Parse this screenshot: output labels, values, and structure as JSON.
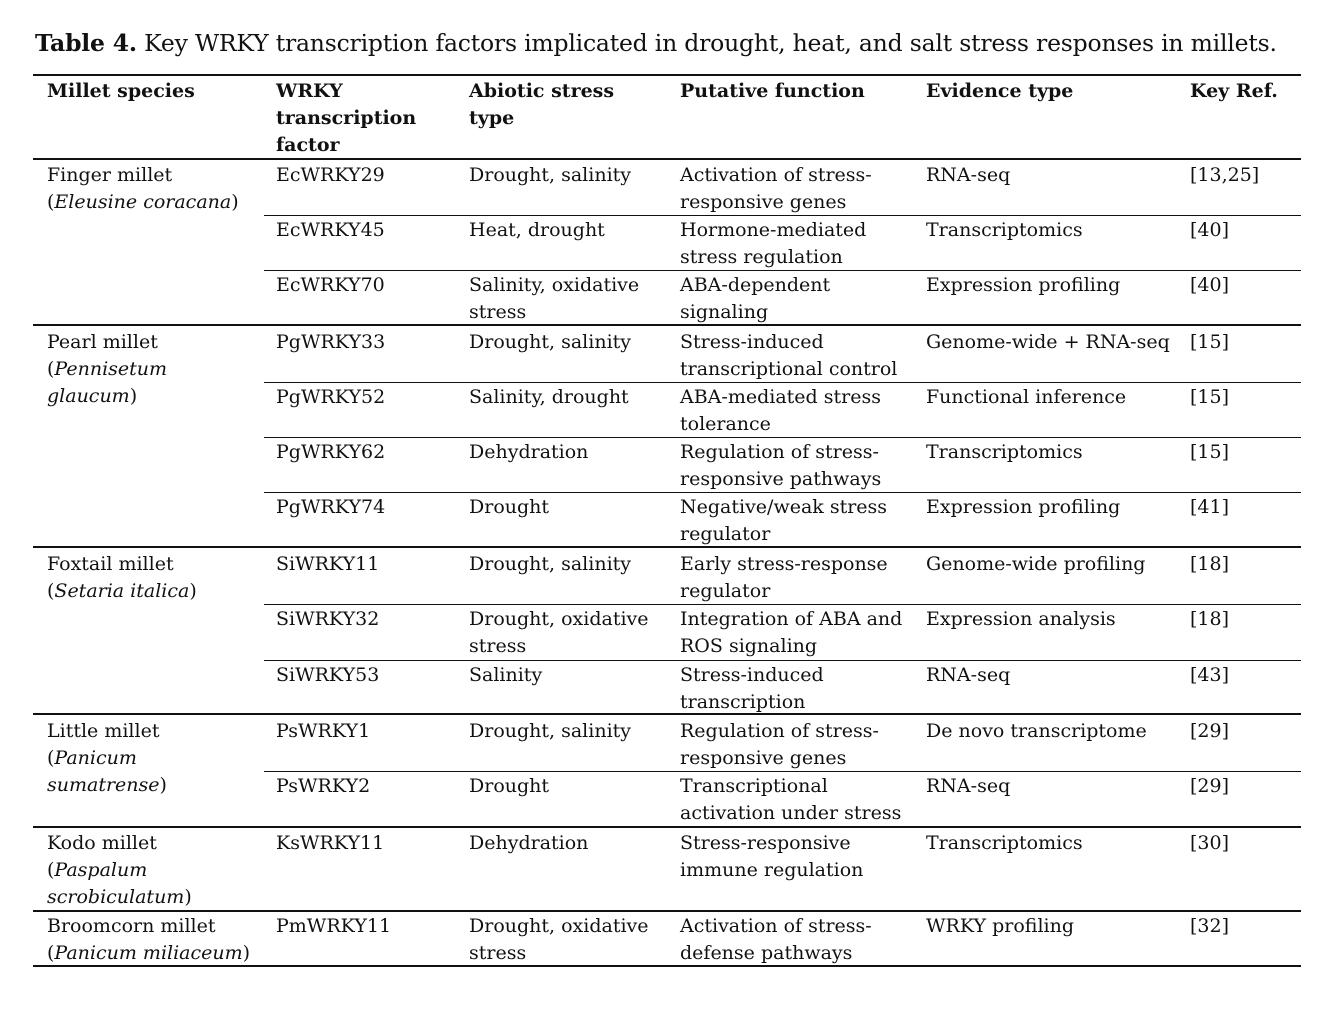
{
  "caption": {
    "label": "Table 4.",
    "text": " Key WRKY transcription factors implicated in drought, heat, and salt stress responses in millets."
  },
  "headers": {
    "species": "Millet species",
    "factor": [
      "WRKY",
      "transcription",
      "factor"
    ],
    "stress": [
      "Abiotic stress",
      "type"
    ],
    "function": "Putative function",
    "evidence": "Evidence type",
    "ref": "Key Ref."
  },
  "groups": [
    {
      "common": "Finger millet",
      "latin_lines": [
        [
          "(",
          "Eleusine coracana",
          ")"
        ]
      ],
      "rows": [
        {
          "factor": "EcWRKY29",
          "stress": [
            "Drought, salinity"
          ],
          "function": [
            "Activation of stress-",
            "responsive genes"
          ],
          "evidence": "RNA-seq",
          "ref": "[13,25]"
        },
        {
          "factor": "EcWRKY45",
          "stress": [
            "Heat, drought"
          ],
          "function": [
            "Hormone-mediated",
            "stress regulation"
          ],
          "evidence": "Transcriptomics",
          "ref": "[40]"
        },
        {
          "factor": "EcWRKY70",
          "stress": [
            "Salinity, oxidative",
            "stress"
          ],
          "function": [
            "ABA-dependent",
            "signaling"
          ],
          "evidence": "Expression profiling",
          "ref": "[40]"
        }
      ]
    },
    {
      "common": "Pearl millet",
      "latin_lines": [
        [
          "(",
          "Pennisetum",
          ""
        ],
        [
          "",
          "glaucum",
          ")"
        ]
      ],
      "rows": [
        {
          "factor": "PgWRKY33",
          "stress": [
            "Drought, salinity"
          ],
          "function": [
            "Stress-induced",
            "transcriptional control"
          ],
          "evidence": "Genome-wide + RNA-seq",
          "ref": "[15]"
        },
        {
          "factor": "PgWRKY52",
          "stress": [
            "Salinity, drought"
          ],
          "function": [
            "ABA-mediated stress",
            "tolerance"
          ],
          "evidence": "Functional inference",
          "ref": "[15]"
        },
        {
          "factor": "PgWRKY62",
          "stress": [
            "Dehydration"
          ],
          "function": [
            "Regulation of stress-",
            "responsive pathways"
          ],
          "evidence": "Transcriptomics",
          "ref": "[15]"
        },
        {
          "factor": "PgWRKY74",
          "stress": [
            "Drought"
          ],
          "function": [
            "Negative/weak stress",
            "regulator"
          ],
          "evidence": "Expression profiling",
          "ref": "[41]"
        }
      ]
    },
    {
      "common": "Foxtail millet",
      "latin_lines": [
        [
          "(",
          "Setaria italica",
          ")"
        ]
      ],
      "rows": [
        {
          "factor": "SiWRKY11",
          "stress": [
            "Drought, salinity"
          ],
          "function": [
            "Early stress-response",
            "regulator"
          ],
          "evidence": "Genome-wide profiling",
          "ref": "[18]"
        },
        {
          "factor": "SiWRKY32",
          "stress": [
            "Drought, oxidative",
            "stress"
          ],
          "function": [
            "Integration of ABA and",
            "ROS signaling"
          ],
          "evidence": "Expression analysis",
          "ref": "[18]"
        },
        {
          "factor": "SiWRKY53",
          "stress": [
            "Salinity"
          ],
          "function": [
            "Stress-induced",
            "transcription"
          ],
          "evidence": "RNA-seq",
          "ref": "[43]"
        }
      ]
    },
    {
      "common": "Little millet",
      "latin_lines": [
        [
          "(",
          "Panicum",
          ""
        ],
        [
          "",
          "sumatrense",
          ")"
        ]
      ],
      "rows": [
        {
          "factor": "PsWRKY1",
          "stress": [
            "Drought, salinity"
          ],
          "function": [
            "Regulation of stress-",
            "responsive genes"
          ],
          "evidence": "De novo transcriptome",
          "ref": "[29]"
        },
        {
          "factor": "PsWRKY2",
          "stress": [
            "Drought"
          ],
          "function": [
            "Transcriptional",
            "activation under stress"
          ],
          "evidence": "RNA-seq",
          "ref": "[29]"
        }
      ]
    },
    {
      "common": "Kodo millet",
      "latin_lines": [
        [
          "(",
          "Paspalum",
          ""
        ],
        [
          "",
          "scrobiculatum",
          ")"
        ]
      ],
      "rows": [
        {
          "factor": "KsWRKY11",
          "stress": [
            "Dehydration"
          ],
          "function": [
            "Stress-responsive",
            "immune regulation"
          ],
          "evidence": "Transcriptomics",
          "ref": "[30]"
        }
      ]
    },
    {
      "common": "Broomcorn millet",
      "latin_lines": [
        [
          "(",
          "Panicum miliaceum",
          ")"
        ]
      ],
      "rows": [
        {
          "factor": "PmWRKY11",
          "stress": [
            "Drought, oxidative",
            "stress"
          ],
          "function": [
            "Activation of stress-",
            "defense pathways"
          ],
          "evidence": "WRKY profiling",
          "ref": "[32]"
        }
      ]
    }
  ]
}
